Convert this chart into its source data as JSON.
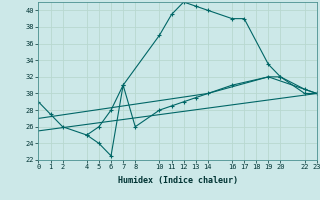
{
  "xlabel": "Humidex (Indice chaleur)",
  "ylabel": "",
  "bg_color": "#cce8e8",
  "grid_color": "#d0e8e0",
  "line_color": "#006666",
  "lines": [
    {
      "x": [
        0,
        1,
        2,
        4,
        5,
        6,
        7,
        10,
        11,
        12,
        13,
        14,
        16,
        17,
        19,
        20,
        22,
        23
      ],
      "y": [
        29,
        27.5,
        26,
        25,
        26,
        28,
        31,
        37,
        39.5,
        41,
        40.5,
        40,
        39,
        39,
        33.5,
        32,
        30.5,
        30
      ]
    },
    {
      "x": [
        4,
        5,
        6,
        7,
        8,
        10,
        11,
        12,
        13,
        14,
        16,
        19,
        20,
        22,
        23
      ],
      "y": [
        25,
        24,
        22.5,
        31,
        26,
        28,
        28.5,
        29,
        29.5,
        30,
        31,
        32,
        32,
        30,
        30
      ]
    },
    {
      "x": [
        0,
        23
      ],
      "y": [
        25.5,
        30
      ]
    },
    {
      "x": [
        0,
        14,
        19,
        23
      ],
      "y": [
        27,
        30,
        32,
        30
      ]
    }
  ],
  "xlim": [
    0,
    23
  ],
  "ylim": [
    22,
    41
  ],
  "yticks": [
    22,
    24,
    26,
    28,
    30,
    32,
    34,
    36,
    38,
    40
  ],
  "xticks": [
    0,
    1,
    2,
    4,
    5,
    6,
    7,
    8,
    10,
    11,
    12,
    13,
    14,
    16,
    17,
    18,
    19,
    20,
    22,
    23
  ]
}
